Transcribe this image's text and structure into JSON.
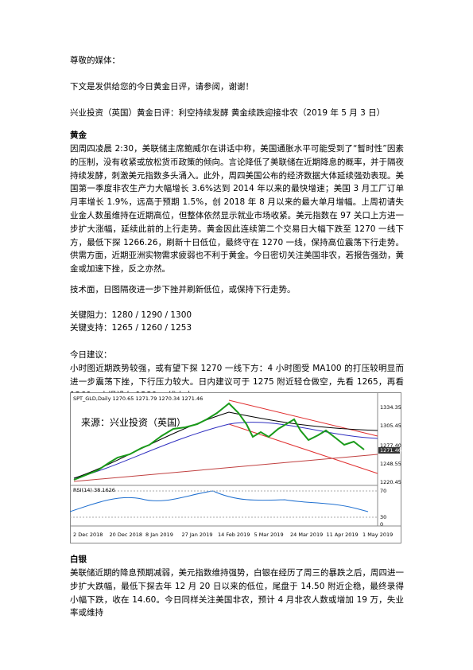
{
  "greeting": "尊敬的媒体：",
  "intro": "下文是发供给您的今日黄金日评，请参阅，谢谢！",
  "headline": "兴业投资（英国）黄金日评：利空持续发酵 黄金续跌迎接非农（2019 年 5 月 3 日）",
  "gold": {
    "title": "黄金",
    "body": "因周四凌晨 2:30，美联储主席鲍威尔在讲话中称，美国通胀水平可能受到了“暂时性”因素的压制，没有收紧或放松货币政策的倾向。言论降低了美联储在近期降息的概率，并于隔夜持续发酵，刺激美元指数多头涌入。此外，周四美国公布的经济数据大体延续强劲表现。美国第一季度非农生产力大幅增长 3.6%达到 2014 年以来的最快增速；美国 3 月工厂订单月率增长 1.9%，远高于预期 1.5%，创 2018 年 8 月以来的最大单月增幅。上周初请失业金人数虽维持在近期高位，但整体依然显示就业市场收紧。美元指数在 97 关口上方进一步扩大涨幅，延续此前的上行走势。黄金因此连续第二个交易日大幅下跌至 1270 一线下方，最低下探 1266.26，刷新十日低位，最终守在 1270 一线，保持高位震荡下行走势。供需方面，近期亚洲实物需求疲弱也不利于黄金。今日密切关注美国非农，若报告强劲，黄金或加速下挫，反之亦然。",
    "technical": "技术面，日图隔夜进一步下挫并刷新低位，或保持下行走势。",
    "resistance": "关键阻力：1280 / 1290 / 1300",
    "support": "关键支持：1265 / 1260 / 1253",
    "advice_title": "今日建议：",
    "advice": "小时图近期跌势较强，或有望下探 1270 一线下方：4 小时图受 MA100 的打压较明显而进一步震荡下挫，下行压力较大。日内建议可于 1275 附近轻仓做空，先看 1265，再看 1260，止损设在 1280 一线上方。",
    "chart": {
      "header": "SPT_GLD,Daily  1270.65 1271.79 1270.34 1271.46",
      "watermark": "来源：兴业投资（英国）",
      "rsi_label": "RSI(14) 38.1626",
      "price_labels": [
        "1334.35",
        "1305.45",
        "1277.40",
        "1271.46",
        "1248.55",
        "1220.45"
      ],
      "rsi_labels": [
        "70",
        "30",
        "0"
      ],
      "dates": [
        "2 Dec 2018",
        "20 Dec 2018",
        "8 Jan 2019",
        "27 Jan 2019",
        "14 Feb 2019",
        "5 Mar 2019",
        "24 Mar 2019",
        "11 Apr 2019",
        "1 May 2019"
      ]
    }
  },
  "silver": {
    "title": "白银",
    "body": "美联储近期的降息预期减弱，美元指数维持强势，白银在经历了周三的暴跌之后，周四进一步扩大跌幅，最低下探去年 12 月 20 日以来的低位，尾盘于 14.50 附近企稳，最终录得小幅下跌，收在 14.60。今日同样关注美国非农，预计 4 月非农人数或增加 19 万，失业率或维持"
  }
}
